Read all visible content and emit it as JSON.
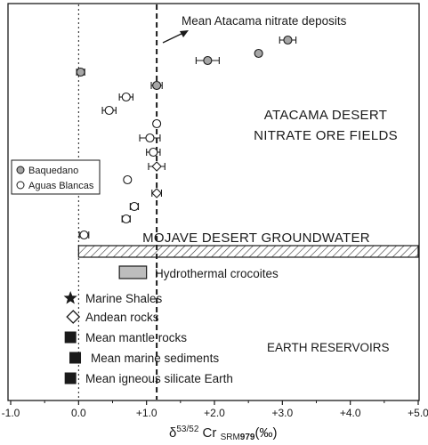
{
  "chart_data": {
    "type": "scatter",
    "x_axis": {
      "range": [
        -1.0,
        5.0
      ],
      "ticks": [
        "-1.0",
        "0.0",
        "+1.0",
        "+2.0",
        "+3.0",
        "+4.0",
        "+5.0"
      ],
      "label_main": "δ",
      "label_sup": "53/52",
      "label_mid": " Cr ",
      "label_sub1": "SRM",
      "label_sub2": "979",
      "label_unit": "(‰)"
    },
    "reference_lines": [
      {
        "name": "zero-line",
        "x": 0.0,
        "style": "dotted"
      },
      {
        "name": "mean-atacama-line",
        "x": 1.15,
        "style": "dashed"
      }
    ],
    "series": [
      {
        "name": "Baquedano",
        "marker": "circle",
        "fill": "#a6a6a6",
        "points": [
          {
            "x": 3.08,
            "err": 0.12
          },
          {
            "x": 2.65,
            "err": 0.0
          },
          {
            "x": 1.9,
            "err": 0.17
          },
          {
            "x": 0.03,
            "err": 0.06
          },
          {
            "x": 1.15,
            "err": 0.08
          }
        ]
      },
      {
        "name": "Aguas Blancas",
        "marker": "circle",
        "fill": "#ffffff",
        "points": [
          {
            "x": 0.7,
            "err": 0.1
          },
          {
            "x": 0.45,
            "err": 0.1
          },
          {
            "x": 1.15,
            "err": 0.0
          },
          {
            "x": 1.05,
            "err": 0.15
          },
          {
            "x": 1.1,
            "err": 0.1
          },
          {
            "x": 0.72,
            "err": 0.0
          },
          {
            "x": 0.82,
            "err": 0.06
          },
          {
            "x": 0.7,
            "err": 0.06
          },
          {
            "x": 0.08,
            "err": 0.07
          }
        ]
      },
      {
        "name": "Andean rocks",
        "marker": "diamond",
        "fill": "#ffffff",
        "points": [
          {
            "x": 1.15,
            "err": 0.12
          },
          {
            "x": 1.15,
            "err": 0.07
          }
        ]
      }
    ],
    "ranges": [
      {
        "label": "MOJAVE DESERT GROUNDWATER",
        "x": [
          0.0,
          5.0
        ],
        "pattern": "hatched"
      },
      {
        "label": "Hydrothermal crocoites",
        "x": [
          0.6,
          1.0
        ],
        "fill": "#bdbdbd"
      }
    ],
    "reservoirs": [
      {
        "label": "Marine Shales",
        "marker": "star",
        "x": -0.12
      },
      {
        "label": "Andean rocks",
        "marker": "diamond-open",
        "x": -0.08
      },
      {
        "label": "Mean mantle rocks",
        "marker": "square",
        "x": -0.12
      },
      {
        "label": "Mean marine sediments",
        "marker": "square",
        "x": -0.05
      },
      {
        "label": "Mean igneous silicate Earth",
        "marker": "square",
        "x": -0.12
      }
    ],
    "annotations": {
      "mean_atacama": "Mean Atacama nitrate deposits",
      "region_top_line1": "ATACAMA DESERT",
      "region_top_line2": "NITRATE ORE FIELDS",
      "region_bottom": "EARTH RESERVOIRS"
    },
    "legend": {
      "placement": "left",
      "entries": [
        {
          "name": "Baquedano",
          "fill": "#a6a6a6"
        },
        {
          "name": "Aguas Blancas",
          "fill": "#ffffff"
        }
      ]
    },
    "colors": {
      "marker_gray": "#a6a6a6",
      "ink": "#1a1a1a",
      "crocoite": "#bdbdbd"
    }
  }
}
